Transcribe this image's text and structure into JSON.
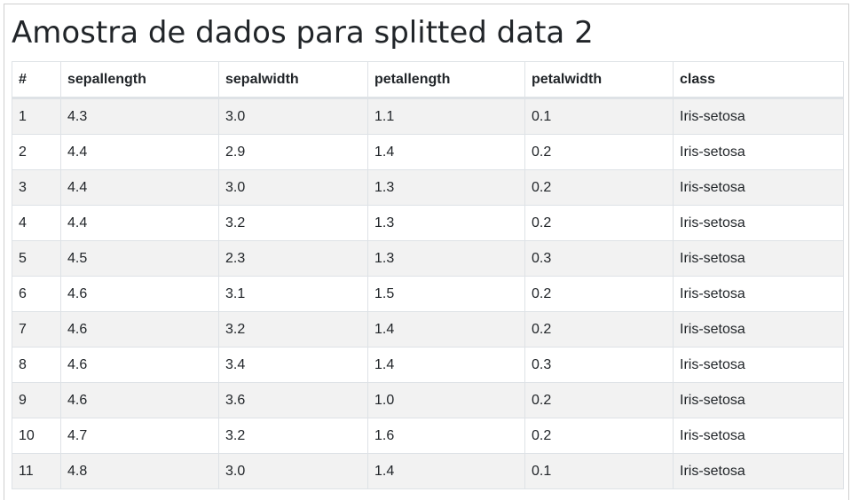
{
  "page": {
    "title": "Amostra de dados para splitted data 2"
  },
  "table": {
    "columns": [
      "#",
      "sepallength",
      "sepalwidth",
      "petallength",
      "petalwidth",
      "class"
    ],
    "rows": [
      [
        "1",
        "4.3",
        "3.0",
        "1.1",
        "0.1",
        "Iris-setosa"
      ],
      [
        "2",
        "4.4",
        "2.9",
        "1.4",
        "0.2",
        "Iris-setosa"
      ],
      [
        "3",
        "4.4",
        "3.0",
        "1.3",
        "0.2",
        "Iris-setosa"
      ],
      [
        "4",
        "4.4",
        "3.2",
        "1.3",
        "0.2",
        "Iris-setosa"
      ],
      [
        "5",
        "4.5",
        "2.3",
        "1.3",
        "0.3",
        "Iris-setosa"
      ],
      [
        "6",
        "4.6",
        "3.1",
        "1.5",
        "0.2",
        "Iris-setosa"
      ],
      [
        "7",
        "4.6",
        "3.2",
        "1.4",
        "0.2",
        "Iris-setosa"
      ],
      [
        "8",
        "4.6",
        "3.4",
        "1.4",
        "0.3",
        "Iris-setosa"
      ],
      [
        "9",
        "4.6",
        "3.6",
        "1.0",
        "0.2",
        "Iris-setosa"
      ],
      [
        "10",
        "4.7",
        "3.2",
        "1.6",
        "0.2",
        "Iris-setosa"
      ],
      [
        "11",
        "4.8",
        "3.0",
        "1.4",
        "0.1",
        "Iris-setosa"
      ]
    ]
  }
}
